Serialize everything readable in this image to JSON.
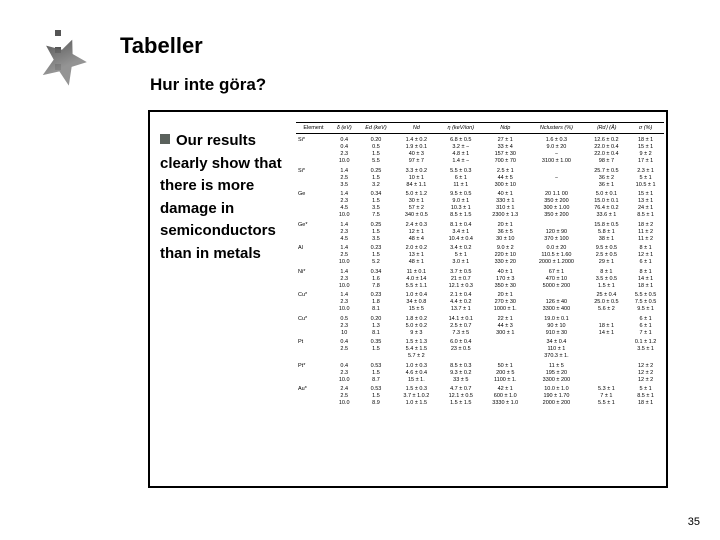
{
  "title": "Tabeller",
  "subtitle": "Hur inte göra?",
  "bullet_text": "Our results clearly show that there is more damage in semiconductors than in metals",
  "page_number": "35",
  "table": {
    "headers": [
      "Element",
      "δ (eV)",
      "Ed (keV)",
      "Nd",
      "η (keV/ion)",
      "Ndp",
      "Nclusters (%)",
      "⟨Rd⟩ (Å)",
      "σ (%)"
    ],
    "groups": [
      {
        "el": "Si*",
        "rows": [
          [
            "0.4",
            "0.20",
            "1.4 ± 0.2",
            "6.8 ± 0.5",
            "27 ± 1",
            "1.6 ± 0.3",
            "12.6 ± 0.2",
            "18 ± 1"
          ],
          [
            "0.4",
            "0.5",
            "1.9 ± 0.1",
            "3.2 ± −",
            "33 ± 4",
            "9.0 ± 20",
            "22.0 ± 0.4",
            "15 ± 1"
          ],
          [
            "2.3",
            "1.5",
            "40 ± 3",
            "4.8 ± 1",
            "157 ± 30",
            "−",
            "22.0 ± 0.4",
            "9 ± 2"
          ],
          [
            "10.0",
            "5.5",
            "97 ± 7",
            "1.4 ± −",
            "700 ± 70",
            "3100 ± 1.00",
            "98 ± 7",
            "17 ± 1"
          ]
        ]
      },
      {
        "el": "Si*",
        "rows": [
          [
            "1.4",
            "0.25",
            "3.3 ± 0.2",
            "5.5 ± 0.3",
            "2.5 ± 1",
            "",
            "25.7 ± 0.5",
            "2.3 ± 1"
          ],
          [
            "2.5",
            "1.5",
            "10 ± 1",
            "6 ± 1",
            "44 ± 5",
            "−",
            "36 ± 2",
            "5 ± 1"
          ],
          [
            "3.5",
            "3.2",
            "84 ± 1.1",
            "11 ± 1",
            "300 ± 10",
            "",
            "36 ± 1",
            "10.5 ± 1"
          ]
        ]
      },
      {
        "el": "Ge",
        "rows": [
          [
            "1.4",
            "0.34",
            "5.0 ± 1.2",
            "9.5 ± 0.5",
            "40 ± 1",
            "20 1.1 00",
            "5.0 ± 0.1",
            "15 ± 1"
          ],
          [
            "2.3",
            "1.5",
            "30 ± 1",
            "9.0 ± 1",
            "330 ± 1",
            "350 ± 200",
            "15.0 ± 0.1",
            "13 ± 1"
          ],
          [
            "4.5",
            "3.5",
            "57 ± 2",
            "10.3 ± 1",
            "310 ± 1",
            "300 ± 1.00",
            "76.4 ± 0.2",
            "24 ± 1"
          ],
          [
            "10.0",
            "7.5",
            "340 ± 0.5",
            "8.5 ± 1.5",
            "2300 ± 1.3",
            "350 ± 200",
            "33.6 ± 1",
            "8.5 ± 1"
          ]
        ]
      },
      {
        "el": "Ge*",
        "rows": [
          [
            "1.4",
            "0.25",
            "2.4 ± 0.3",
            "8.1 ± 0.4",
            "20 ± 1",
            "",
            "15.8 ± 0.5",
            "18 ± 2"
          ],
          [
            "2.3",
            "1.5",
            "12 ± 1",
            "3.4 ± 1",
            "36 ± 5",
            "120 ± 90",
            "5.8 ± 1",
            "11 ± 2"
          ],
          [
            "4.5",
            "3.5",
            "48 ± 4",
            "10.4 ± 0.4",
            "30 ± 10",
            "370 ± 100",
            "38 ± 1",
            "11 ± 2"
          ]
        ]
      },
      {
        "el": "Al",
        "rows": [
          [
            "1.4",
            "0.23",
            "2.0 ± 0.2",
            "3.4 ± 0.2",
            "9.0 ± 2",
            "0.0 ± 20",
            "9.5 ± 0.5",
            "8 ± 1"
          ],
          [
            "2.5",
            "1.5",
            "13 ± 1",
            "5 ± 1",
            "220 ± 10",
            "110.5 ± 1.60",
            "2.5 ± 0.5",
            "12 ± 1"
          ],
          [
            "10.0",
            "5.2",
            "48 ± 1",
            "3.0 ± 1",
            "330 ± 20",
            "2000 ± 1.2000",
            "29 ± 1",
            "6 ± 1"
          ]
        ]
      },
      {
        "el": "Ni*",
        "rows": [
          [
            "1.4",
            "0.34",
            "11 ± 0.1",
            "3.7 ± 0.5",
            "40 ± 1",
            "67 ± 1",
            "8 ± 1",
            "8 ± 1"
          ],
          [
            "2.3",
            "1.6",
            "4.0 ± 14",
            "21 ± 0.7",
            "170 ± 3",
            "470 ± 10",
            "3.5 ± 0.5",
            "14 ± 1"
          ],
          [
            "10.0",
            "7.8",
            "5.5 ± 1.1",
            "12.1 ± 0.3",
            "350 ± 30",
            "5000 ± 200",
            "1.5 ± 1",
            "18 ± 1"
          ]
        ]
      },
      {
        "el": "Cu*",
        "rows": [
          [
            "1.4",
            "0.23",
            "1.0 ± 0.4",
            "2.1 ± 0.4",
            "20 ± 1",
            "",
            "25 ± 0.4",
            "5.5 ± 0.5"
          ],
          [
            "2.3",
            "1.8",
            "34 ± 0.8",
            "4.4 ± 0.2",
            "270 ± 30",
            "126 ± 40",
            "25.0 ± 0.5",
            "7.5 ± 0.5"
          ],
          [
            "10.0",
            "8.1",
            "15 ± 5",
            "13.7 ± 1",
            "1000 ± 1.",
            "3300 ± 400",
            "5.6 ± 2",
            "9.5 ± 1"
          ]
        ]
      },
      {
        "el": "Cu*",
        "rows": [
          [
            "0.5",
            "0.20",
            "1.8 ± 0.2",
            "14.1 ± 0.1",
            "22 ± 1",
            "19.0 ± 0.1",
            "",
            "6 ± 1"
          ],
          [
            "2.3",
            "1.3",
            "5.0 ± 0.2",
            "2.5 ± 0.7",
            "44 ± 3",
            "90 ± 10",
            "18 ± 1",
            "6 ± 1"
          ],
          [
            "10",
            "8.1",
            "9 ± 3",
            "7.3 ± 5",
            "300 ± 1",
            "910 ± 30",
            "14 ± 1",
            "7 ± 1"
          ]
        ]
      },
      {
        "el": "Pt",
        "rows": [
          [
            "0.4",
            "0.35",
            "1.5 ± 1.3",
            "6.0 ± 0.4",
            "",
            "34 ± 0.4",
            "",
            "0.1 ± 1.2"
          ],
          [
            "2.5",
            "1.5",
            "5.4 ± 1.5",
            "23 ± 0.5",
            "",
            "110 ± 1",
            "",
            "3.5 ± 1"
          ],
          [
            "",
            "",
            "5.7 ± 2",
            "",
            "",
            "370.3 ± 1.",
            "",
            ""
          ]
        ]
      },
      {
        "el": "Pt*",
        "rows": [
          [
            "0.4",
            "0.53",
            "1.0 ± 0.3",
            "8.5 ± 0.3",
            "50 ± 1",
            "11 ± 5",
            "",
            "12 ± 2"
          ],
          [
            "2.3",
            "1.5",
            "4.6 ± 0.4",
            "9.3 ± 0.2",
            "200 ± 5",
            "195 ± 20",
            "",
            "12 ± 2"
          ],
          [
            "10.0",
            "8.7",
            "15 ± 1.",
            "33 ± 5",
            "1100 ± 1.",
            "3300 ± 200",
            "",
            "12 ± 2"
          ]
        ]
      },
      {
        "el": "Au*",
        "rows": [
          [
            "2.4",
            "0.53",
            "1.5 ± 0.3",
            "4.7 ± 0.7",
            "42 ± 1",
            "10.0 ± 1.0",
            "5.3 ± 1",
            "5 ± 1"
          ],
          [
            "2.5",
            "1.5",
            "3.7 ± 1.0.2",
            "12.1 ± 0.5",
            "600 ± 1.0",
            "190 ± 1.70",
            "7 ± 1",
            "8.5 ± 1"
          ],
          [
            "10.0",
            "8.9",
            "1.0 ± 1.5",
            "1.5 ± 1.5",
            "3330 ± 1.0",
            "2000 ± 200",
            "5.5 ± 1",
            "18 ± 1"
          ]
        ]
      }
    ]
  }
}
